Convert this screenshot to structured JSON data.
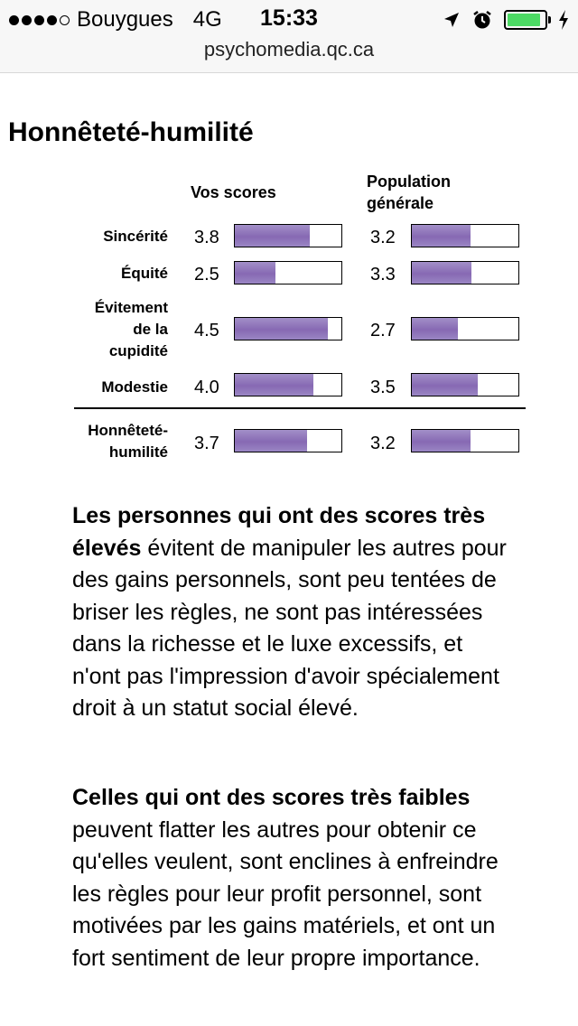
{
  "status_bar": {
    "carrier": "Bouygues",
    "network": "4G",
    "time": "15:33",
    "battery_level": 0.9,
    "battery_color": "#4cd964"
  },
  "browser": {
    "url": "psychomedia.qc.ca"
  },
  "page": {
    "title": "Honnêteté-humilité",
    "columns": {
      "yours": "Vos scores",
      "population_l1": "Population",
      "population_l2": "générale"
    },
    "bar_color": "#8769b3",
    "score_max": 5,
    "rows": [
      {
        "label": [
          "Sincérité"
        ],
        "score": "3.8",
        "score_fill": 0.7,
        "population": "3.2",
        "population_fill": 0.55
      },
      {
        "label": [
          "Équité"
        ],
        "score": "2.5",
        "score_fill": 0.38,
        "population": "3.3",
        "population_fill": 0.56
      },
      {
        "label": [
          "Évitement",
          "de la",
          "cupidité"
        ],
        "score": "4.5",
        "score_fill": 0.87,
        "population": "2.7",
        "population_fill": 0.43
      },
      {
        "label": [
          "Modestie"
        ],
        "score": "4.0",
        "score_fill": 0.74,
        "population": "3.5",
        "population_fill": 0.62
      }
    ],
    "total": {
      "label": [
        "Honnêteté-",
        "humilité"
      ],
      "score": "3.7",
      "score_fill": 0.68,
      "population": "3.2",
      "population_fill": 0.55
    },
    "para_high": {
      "bold": "Les personnes qui ont des scores très élevés",
      "text": " évitent de manipuler les autres pour des gains personnels, sont peu tentées de briser les règles, ne sont pas intéressées dans la richesse et le luxe excessifs, et n'ont pas l'impression d'avoir spécialement droit à un statut social élevé."
    },
    "para_low": {
      "bold": "Celles qui ont des scores très faibles",
      "text": " peuvent flatter les autres pour obtenir ce qu'elles veulent, sont enclines à enfreindre les règles pour leur profit personnel, sont motivées par les gains matériels, et ont un fort sentiment de leur propre importance."
    }
  }
}
